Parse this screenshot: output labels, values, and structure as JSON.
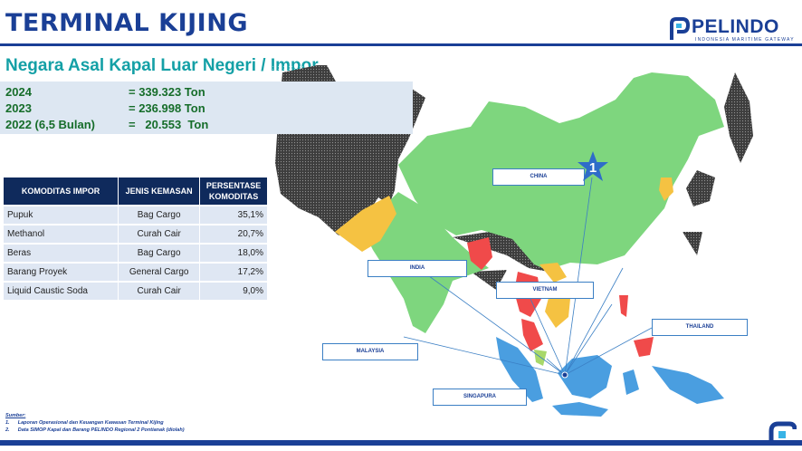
{
  "header": {
    "title": "TERMINAL KIJING",
    "logo_name": "PELINDO",
    "logo_tagline": "INDONESIA MARITIME GATEWAY"
  },
  "subtitle": "Negara Asal Kapal Luar Negeri / Impor",
  "stats": [
    {
      "label": "2024",
      "value": "= 339.323 Ton"
    },
    {
      "label": "2023",
      "value": "= 236.998 Ton"
    },
    {
      "label": "2022 (6,5 Bulan)",
      "value": "=   20.553  Ton"
    }
  ],
  "table": {
    "headers": [
      "KOMODITAS IMPOR",
      "JENIS KEMASAN",
      "PERSENTASE KOMODITAS"
    ],
    "rows": [
      [
        "Pupuk",
        "Bag Cargo",
        "35,1%"
      ],
      [
        "Methanol",
        "Curah Cair",
        "20,7%"
      ],
      [
        "Beras",
        "Bag Cargo",
        "18,0%"
      ],
      [
        "Barang Proyek",
        "General Cargo",
        "17,2%"
      ],
      [
        "Liquid Caustic Soda",
        "Curah Cair",
        "9,0%"
      ]
    ]
  },
  "map": {
    "labels": {
      "china": "CHINA",
      "india": "INDIA",
      "vietnam": "VIETNAM",
      "thailand": "THAILAND",
      "malaysia": "MALAYSIA",
      "singapura": "SINGAPURA"
    },
    "rank_badge": "1",
    "colors": {
      "china": "#7ed67e",
      "india": "#7ed67e",
      "yellow": "#f5c242",
      "red": "#f04a4a",
      "indonesia": "#4a9ee0",
      "other": "#3d3d3d",
      "badge": "#2f6cc9"
    }
  },
  "sources": {
    "heading": "Sumber:",
    "items": [
      "1.      Laporan Operasional dan Keuangan Kawasan Terminal Kijing",
      "2.      Data SIMOP Kapal dan Barang PELINDO Regional 2 Pontianak (diolah)"
    ]
  }
}
